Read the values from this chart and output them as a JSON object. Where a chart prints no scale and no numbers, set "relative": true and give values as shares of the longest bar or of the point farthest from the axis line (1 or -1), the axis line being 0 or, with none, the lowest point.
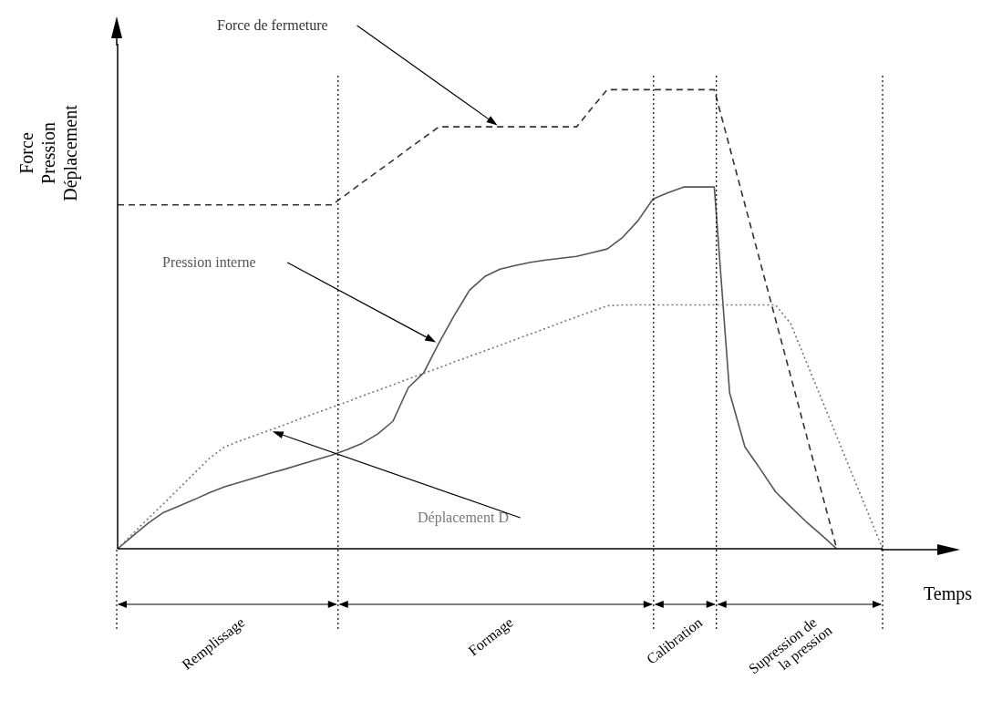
{
  "chart_data": {
    "type": "line",
    "relative": true,
    "xlabel": "Temps",
    "ylabel": "Force Pression Déplacement",
    "categories": [
      null,
      null,
      null,
      null,
      null,
      null,
      null,
      null,
      null,
      null,
      null,
      null,
      null,
      null,
      null,
      null,
      null,
      null,
      null,
      null,
      null,
      null,
      null,
      null,
      null,
      null,
      null,
      null,
      null,
      null,
      null,
      null,
      null,
      null,
      null,
      null,
      null,
      null,
      null,
      null,
      null,
      null,
      null,
      null,
      null,
      null,
      null,
      null,
      null,
      null,
      null
    ],
    "series": [
      {
        "name": "Force de fermeture",
        "color": "#333333",
        "line_style": "dashed",
        "values": [
          0.749,
          0.749,
          0.749,
          0.749,
          0.749,
          0.749,
          0.749,
          0.749,
          0.749,
          0.749,
          0.749,
          0.749,
          0.749,
          0.749,
          0.749,
          0.773,
          0.798,
          0.822,
          0.846,
          0.871,
          0.895,
          0.919,
          0.919,
          0.919,
          0.919,
          0.919,
          0.919,
          0.919,
          0.919,
          0.919,
          0.919,
          0.96,
          1,
          1,
          1,
          1,
          1,
          1,
          1,
          1,
          0.875,
          0.75,
          0.625,
          0.5,
          0.375,
          0.25,
          0.125,
          0,
          null,
          null,
          null
        ]
      },
      {
        "name": "Pression interne",
        "color": "#555555",
        "line_style": "solid",
        "values": [
          0,
          0.028,
          0.056,
          0.079,
          0.093,
          0.107,
          0.122,
          0.135,
          0.145,
          0.155,
          0.165,
          0.174,
          0.184,
          0.194,
          0.204,
          0.216,
          0.23,
          0.25,
          0.278,
          0.351,
          0.383,
          0.448,
          0.508,
          0.563,
          0.593,
          0.609,
          0.617,
          0.624,
          0.629,
          0.633,
          0.637,
          0.645,
          0.653,
          0.678,
          0.714,
          0.762,
          0.776,
          0.788,
          0.788,
          0.788,
          0.34,
          0.222,
          0.174,
          0.124,
          0.091,
          0.059,
          0.03,
          0,
          null,
          null,
          null
        ]
      },
      {
        "name": "Déplacement D",
        "color": "#777777",
        "line_style": "dotted",
        "values": [
          0,
          0.033,
          0.066,
          0.098,
          0.131,
          0.164,
          0.197,
          0.222,
          0.235,
          0.247,
          0.259,
          0.271,
          0.284,
          0.296,
          0.308,
          0.32,
          0.333,
          0.345,
          0.357,
          0.37,
          0.382,
          0.394,
          0.407,
          0.419,
          0.431,
          0.443,
          0.456,
          0.468,
          0.48,
          0.493,
          0.505,
          0.517,
          0.529,
          0.531,
          0.531,
          0.531,
          0.531,
          0.531,
          0.531,
          0.531,
          0.531,
          0.531,
          0.531,
          0.531,
          0.49,
          0.408,
          0.327,
          0.245,
          0.163,
          0.082,
          0
        ]
      }
    ],
    "annotations": [
      "Remplissage",
      "Formage",
      "Calibration",
      "Supression de la pression"
    ]
  }
}
